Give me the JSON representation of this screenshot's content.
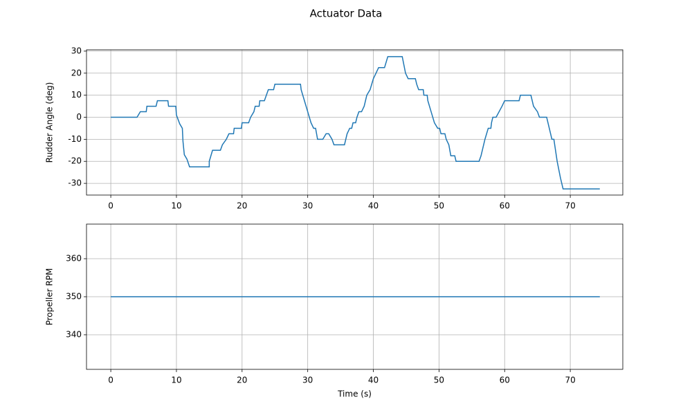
{
  "title": "Actuator Data",
  "chart_data": [
    {
      "type": "line",
      "ylabel": "Rudder Angle (deg)",
      "color": "#1f77b4",
      "grid": true,
      "xlim": [
        -3.7,
        78.0
      ],
      "xticks": [
        0,
        10,
        20,
        30,
        40,
        50,
        60,
        70
      ],
      "ylim": [
        -35.3,
        30.6
      ],
      "yticks": [
        -30,
        -20,
        -10,
        0,
        10,
        20,
        30
      ],
      "x": [
        0,
        4.0,
        4.5,
        5.4,
        5.5,
        6.9,
        7.1,
        8.7,
        8.8,
        9.9,
        10.0,
        10.5,
        10.9,
        11.0,
        11.2,
        11.6,
        12.0,
        15.0,
        15.0,
        15.5,
        16.7,
        17.0,
        17.6,
        18.0,
        18.7,
        18.8,
        19.9,
        20.0,
        21.0,
        21.3,
        21.8,
        22.0,
        22.6,
        22.7,
        23.4,
        23.7,
        24.0,
        24.8,
        25.0,
        28.9,
        29.0,
        29.5,
        30.0,
        30.5,
        30.9,
        31.2,
        31.5,
        32.3,
        32.8,
        33.2,
        33.7,
        34.0,
        35.6,
        36.0,
        36.4,
        36.7,
        36.9,
        37.3,
        37.5,
        37.8,
        38.2,
        38.6,
        39.0,
        39.5,
        40.0,
        40.4,
        40.8,
        41.7,
        42.2,
        44.4,
        44.9,
        45.3,
        46.4,
        46.6,
        46.9,
        47.6,
        47.7,
        48.2,
        48.3,
        48.8,
        49.3,
        49.8,
        50.1,
        50.3,
        50.9,
        51.1,
        51.5,
        51.8,
        52.4,
        52.6,
        56.1,
        56.4,
        57.0,
        57.5,
        57.9,
        58.0,
        58.2,
        58.7,
        59.6,
        60.0,
        62.2,
        62.4,
        64.0,
        64.4,
        65.0,
        65.3,
        66.4,
        66.8,
        67.2,
        67.5,
        68.0,
        68.5,
        68.9,
        74.5
      ],
      "values": [
        0,
        0,
        2.5,
        2.5,
        5,
        5,
        7.5,
        7.5,
        5,
        5,
        1,
        -3,
        -5,
        -11,
        -17,
        -19,
        -22.5,
        -22.5,
        -20,
        -15,
        -15,
        -12.5,
        -10,
        -7.5,
        -7.5,
        -5,
        -5,
        -2.5,
        -2.5,
        0,
        2.5,
        5,
        5,
        7.5,
        7.5,
        10,
        12.5,
        12.5,
        15,
        15,
        12.5,
        7.5,
        2.5,
        -2.5,
        -5,
        -5,
        -10,
        -10,
        -7.5,
        -7.5,
        -10,
        -12.5,
        -12.5,
        -7.5,
        -5,
        -5,
        -2.5,
        -2.5,
        0,
        2.5,
        2.5,
        5,
        10,
        12.5,
        17.5,
        20,
        22.5,
        22.5,
        27.5,
        27.5,
        20,
        17.5,
        17.5,
        15,
        12.5,
        12.5,
        10,
        10,
        7.5,
        2.5,
        -2.5,
        -5,
        -5,
        -7.5,
        -7.5,
        -10,
        -12.5,
        -17.5,
        -17.5,
        -20,
        -20,
        -17.5,
        -10,
        -5,
        -5,
        -2.5,
        0,
        0,
        5,
        7.5,
        7.5,
        10,
        10,
        5,
        2.5,
        0,
        0,
        -5,
        -10,
        -10,
        -20,
        -27.5,
        -32.5,
        -32.5
      ]
    },
    {
      "type": "line",
      "ylabel": "Propeller RPM",
      "xlabel": "Time (s)",
      "color": "#1f77b4",
      "grid": true,
      "xlim": [
        -3.7,
        78.0
      ],
      "xticks": [
        0,
        10,
        20,
        30,
        40,
        50,
        60,
        70
      ],
      "ylim": [
        330.9,
        369.1
      ],
      "yticks": [
        340,
        350,
        360
      ],
      "x": [
        0,
        74.5
      ],
      "values": [
        350,
        350
      ]
    }
  ]
}
